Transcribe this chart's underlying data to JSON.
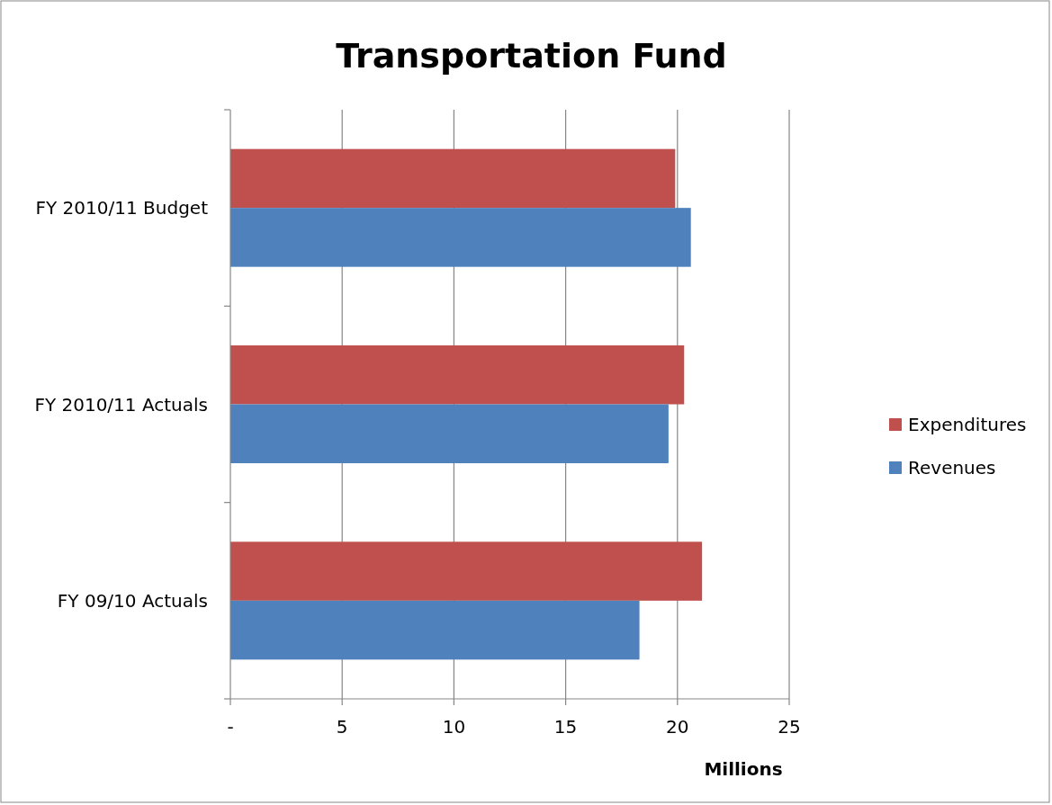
{
  "chart_data": {
    "type": "bar",
    "orientation": "horizontal",
    "title": "Transportation Fund",
    "xlabel": "Millions",
    "categories": [
      "FY 2010/11 Budget",
      "FY 2010/11 Actuals",
      "FY 09/10 Actuals"
    ],
    "series": [
      {
        "name": "Expenditures",
        "color": "#c0504d",
        "values": [
          19.9,
          20.3,
          21.1
        ]
      },
      {
        "name": "Revenues",
        "color": "#4f81bd",
        "values": [
          20.6,
          19.6,
          18.3
        ]
      }
    ],
    "xlim": [
      0,
      25
    ],
    "xticks": [
      {
        "value": 0,
        "label": "-"
      },
      5,
      10,
      15,
      20,
      25
    ],
    "grid": "x",
    "legend": "right"
  }
}
